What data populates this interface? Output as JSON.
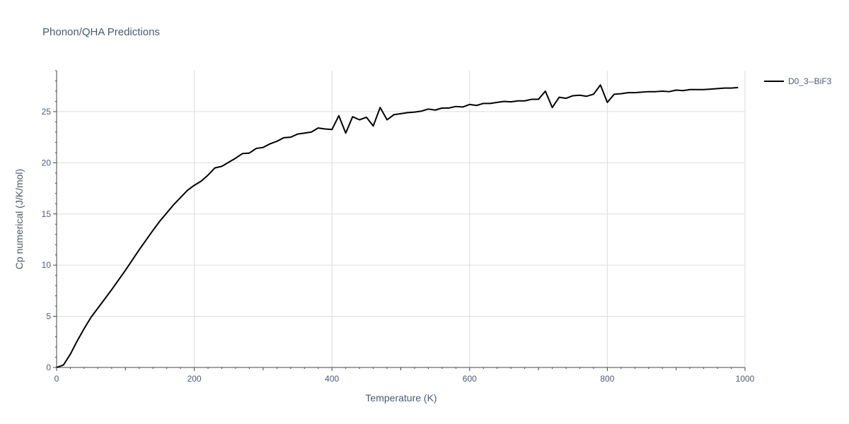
{
  "chart_data": {
    "type": "line",
    "title": "Phonon/QHA Predictions",
    "xlabel": "Temperature (K)",
    "ylabel": "Cp numerical (J/K/mol)",
    "xlim": [
      0,
      1000
    ],
    "ylim": [
      0,
      29
    ],
    "x_ticks": [
      0,
      200,
      400,
      600,
      800,
      1000
    ],
    "y_ticks": [
      0,
      5,
      10,
      15,
      20,
      25
    ],
    "grid": true,
    "legend_position": "top-right",
    "series": [
      {
        "name": "D0_3--BiF3",
        "color": "#000000",
        "x": [
          0,
          10,
          20,
          30,
          40,
          50,
          60,
          70,
          80,
          90,
          100,
          110,
          120,
          130,
          140,
          150,
          160,
          170,
          180,
          190,
          200,
          210,
          220,
          230,
          240,
          250,
          260,
          270,
          280,
          290,
          300,
          310,
          320,
          330,
          340,
          350,
          360,
          370,
          380,
          390,
          400,
          410,
          420,
          430,
          440,
          450,
          460,
          470,
          480,
          490,
          500,
          510,
          520,
          530,
          540,
          550,
          560,
          570,
          580,
          590,
          600,
          610,
          620,
          630,
          640,
          650,
          660,
          670,
          680,
          690,
          700,
          710,
          720,
          730,
          740,
          750,
          760,
          770,
          780,
          790,
          800,
          810,
          820,
          830,
          840,
          850,
          860,
          870,
          880,
          890,
          900,
          910,
          920,
          930,
          940,
          950,
          960,
          970,
          980,
          990
        ],
        "y": [
          0,
          0.25,
          1.3,
          2.6,
          3.8,
          4.9,
          5.8,
          6.7,
          7.6,
          8.55,
          9.5,
          10.5,
          11.5,
          12.45,
          13.4,
          14.3,
          15.1,
          15.9,
          16.6,
          17.3,
          17.8,
          18.2,
          18.8,
          19.5,
          19.65,
          20.05,
          20.45,
          20.9,
          20.95,
          21.4,
          21.5,
          21.85,
          22.1,
          22.45,
          22.5,
          22.8,
          22.9,
          23.0,
          23.4,
          23.3,
          23.25,
          24.6,
          22.9,
          24.5,
          24.2,
          24.45,
          23.6,
          25.4,
          24.2,
          24.7,
          24.8,
          24.9,
          24.95,
          25.05,
          25.25,
          25.15,
          25.35,
          25.35,
          25.5,
          25.45,
          25.7,
          25.6,
          25.8,
          25.8,
          25.9,
          26.0,
          25.95,
          26.05,
          26.05,
          26.2,
          26.2,
          27.0,
          25.4,
          26.4,
          26.3,
          26.55,
          26.6,
          26.5,
          26.7,
          27.6,
          25.9,
          26.7,
          26.75,
          26.85,
          26.85,
          26.9,
          26.95,
          26.95,
          27.0,
          26.95,
          27.1,
          27.05,
          27.15,
          27.15,
          27.15,
          27.2,
          27.25,
          27.3,
          27.3,
          27.35
        ]
      }
    ]
  }
}
